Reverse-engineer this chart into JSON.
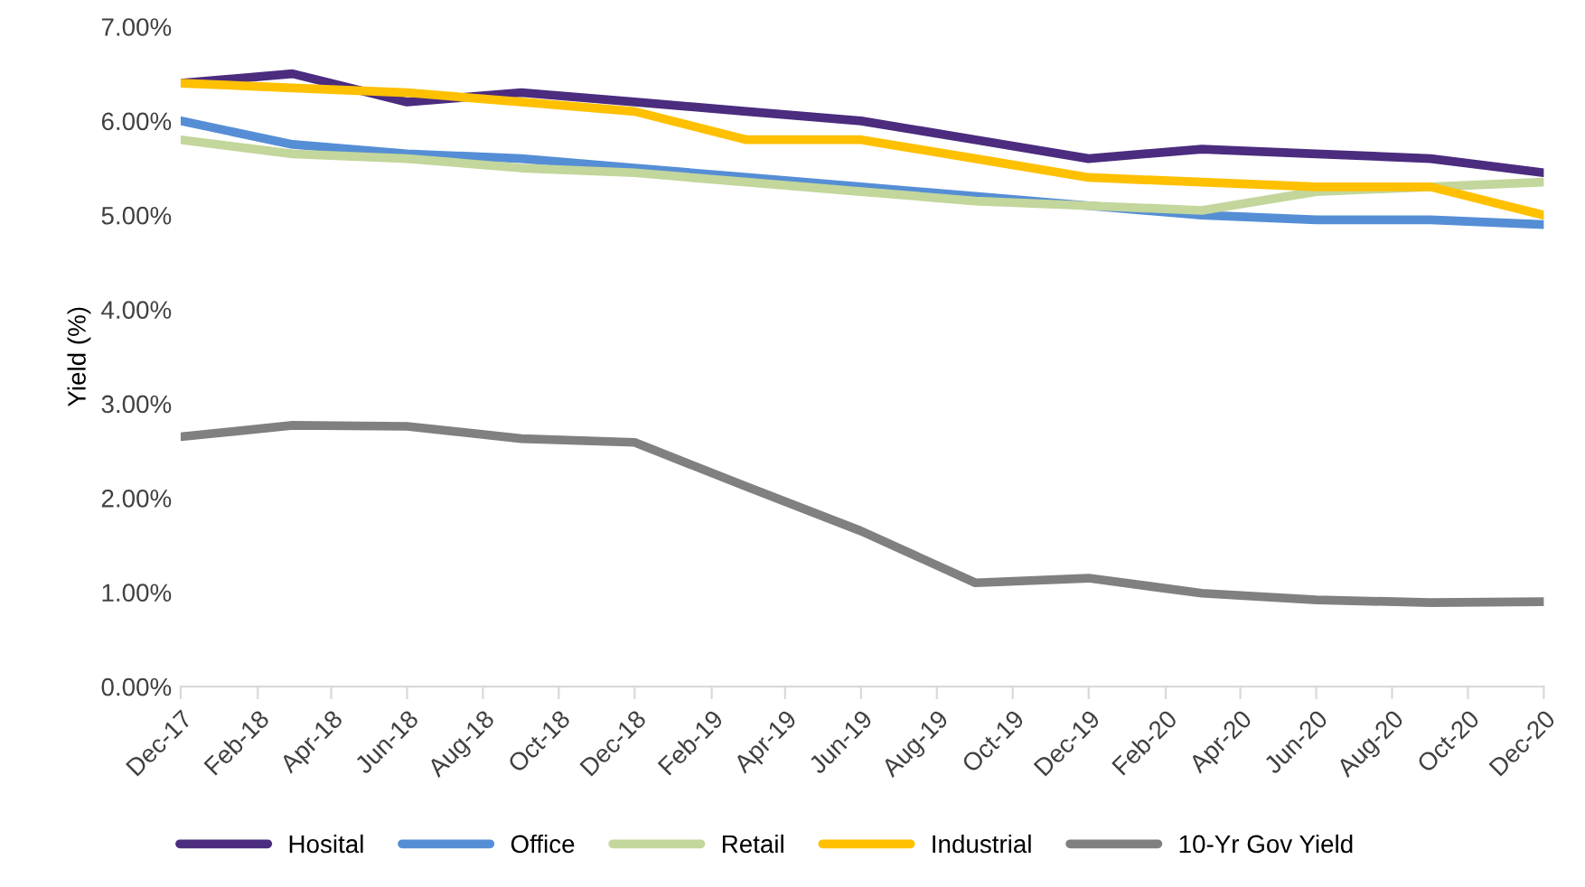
{
  "chart_data": {
    "type": "line",
    "ylabel": "Yield (%)",
    "x": [
      "2017-12",
      "2018-03",
      "2018-06",
      "2018-09",
      "2018-12",
      "2019-03",
      "2019-06",
      "2019-09",
      "2019-12",
      "2020-03",
      "2020-06",
      "2020-09",
      "2020-12"
    ],
    "series": [
      {
        "name": "Hosital",
        "color": "#4b2c7f",
        "values": [
          6.4,
          6.5,
          6.2,
          6.3,
          6.2,
          6.1,
          6.0,
          5.8,
          5.6,
          5.7,
          5.65,
          5.6,
          5.45
        ]
      },
      {
        "name": "Office",
        "color": "#558ed5",
        "values": [
          6.0,
          5.75,
          5.65,
          5.6,
          5.5,
          5.4,
          5.3,
          5.2,
          5.1,
          5.0,
          4.95,
          4.95,
          4.9
        ]
      },
      {
        "name": "Retail",
        "color": "#c3d69b",
        "values": [
          5.8,
          5.65,
          5.6,
          5.5,
          5.45,
          5.35,
          5.25,
          5.15,
          5.1,
          5.05,
          5.25,
          5.3,
          5.35
        ]
      },
      {
        "name": "Industrial",
        "color": "#ffc000",
        "values": [
          6.4,
          6.35,
          6.3,
          6.2,
          6.1,
          5.8,
          5.8,
          5.6,
          5.4,
          5.35,
          5.3,
          5.3,
          5.0
        ]
      },
      {
        "name": "10-Yr Gov Yield",
        "color": "#808080",
        "values": [
          2.65,
          2.77,
          2.76,
          2.63,
          2.59,
          2.12,
          1.65,
          1.1,
          1.15,
          0.99,
          0.92,
          0.89,
          0.9
        ]
      }
    ],
    "xlim": [
      "2017-12",
      "2020-12"
    ],
    "xticks": [
      {
        "value": "2017-12",
        "label": "Dec-17"
      },
      {
        "value": "2018-02",
        "label": "Feb-18"
      },
      {
        "value": "2018-04",
        "label": "Apr-18"
      },
      {
        "value": "2018-06",
        "label": "Jun-18"
      },
      {
        "value": "2018-08",
        "label": "Aug-18"
      },
      {
        "value": "2018-10",
        "label": "Oct-18"
      },
      {
        "value": "2018-12",
        "label": "Dec-18"
      },
      {
        "value": "2019-02",
        "label": "Feb-19"
      },
      {
        "value": "2019-04",
        "label": "Apr-19"
      },
      {
        "value": "2019-06",
        "label": "Jun-19"
      },
      {
        "value": "2019-08",
        "label": "Aug-19"
      },
      {
        "value": "2019-10",
        "label": "Oct-19"
      },
      {
        "value": "2019-12",
        "label": "Dec-19"
      },
      {
        "value": "2020-02",
        "label": "Feb-20"
      },
      {
        "value": "2020-04",
        "label": "Apr-20"
      },
      {
        "value": "2020-06",
        "label": "Jun-20"
      },
      {
        "value": "2020-08",
        "label": "Aug-20"
      },
      {
        "value": "2020-10",
        "label": "Oct-20"
      },
      {
        "value": "2020-12",
        "label": "Dec-20"
      }
    ],
    "ylim": [
      0,
      7
    ],
    "yticks": [
      {
        "value": 0,
        "label": "0.00%"
      },
      {
        "value": 1,
        "label": "1.00%"
      },
      {
        "value": 2,
        "label": "2.00%"
      },
      {
        "value": 3,
        "label": "3.00%"
      },
      {
        "value": 4,
        "label": "4.00%"
      },
      {
        "value": 5,
        "label": "5.00%"
      },
      {
        "value": 6,
        "label": "6.00%"
      },
      {
        "value": 7,
        "label": "7.00%"
      }
    ],
    "grid": false,
    "legend": "bottom",
    "marker": "none",
    "line_style": "solid"
  }
}
